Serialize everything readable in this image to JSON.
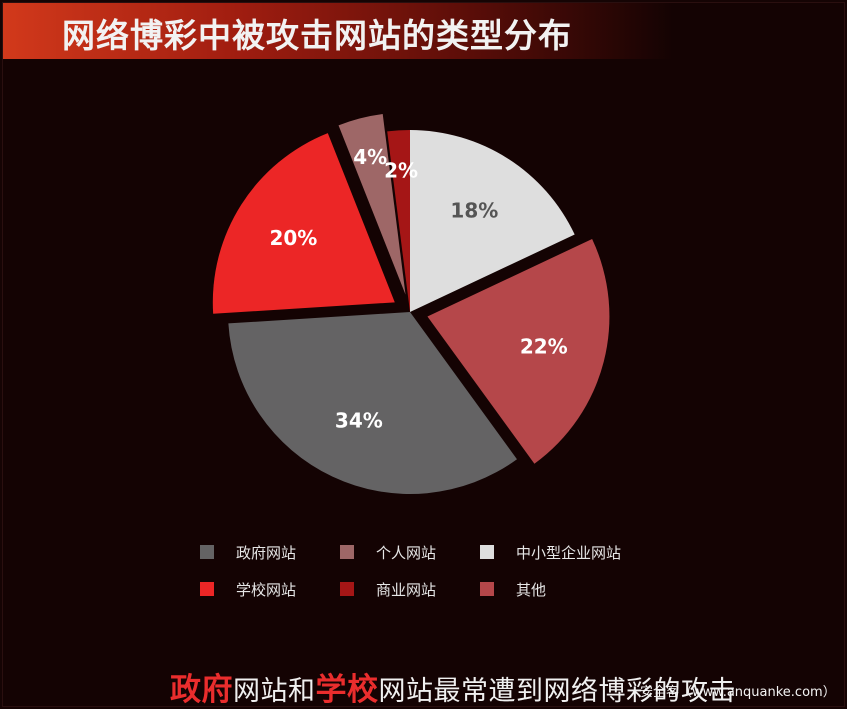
{
  "page": {
    "title": "网络博彩中被攻击网站的类型分布",
    "footer_hl1": "政府",
    "footer_t1": "网站和",
    "footer_hl2": "学校",
    "footer_t2": "网站最常遭到网络博彩的攻击",
    "watermark": "安全客（www.anquanke.com）"
  },
  "chart_data": {
    "type": "pie",
    "title": "网络博彩中被攻击网站的类型分布",
    "legend_placement": "bottom",
    "slices": [
      {
        "name": "中小型企业网站",
        "value": 18,
        "label": "18%",
        "color": "#dedede",
        "label_color": "#555555"
      },
      {
        "name": "其他",
        "value": 22,
        "label": "22%",
        "color": "#b5474a",
        "label_color": "#ffffff",
        "exploded": true
      },
      {
        "name": "政府网站",
        "value": 34,
        "label": "34%",
        "color": "#646364",
        "label_color": "#ffffff"
      },
      {
        "name": "学校网站",
        "value": 20,
        "label": "20%",
        "color": "#ec2626",
        "label_color": "#ffffff",
        "exploded": true
      },
      {
        "name": "个人网站",
        "value": 4,
        "label": "4%",
        "color": "#9e6767",
        "label_color": "#ffffff",
        "exploded": true
      },
      {
        "name": "商业网站",
        "value": 2,
        "label": "2%",
        "color": "#a51616",
        "label_color": "#ffffff"
      }
    ],
    "legend": [
      {
        "name": "政府网站",
        "color": "#646364"
      },
      {
        "name": "个人网站",
        "color": "#9e6767"
      },
      {
        "name": "中小型企业网站",
        "color": "#dedede"
      },
      {
        "name": "学校网站",
        "color": "#ec2626"
      },
      {
        "name": "商业网站",
        "color": "#a51616"
      },
      {
        "name": "其他",
        "color": "#b5474a"
      }
    ]
  }
}
